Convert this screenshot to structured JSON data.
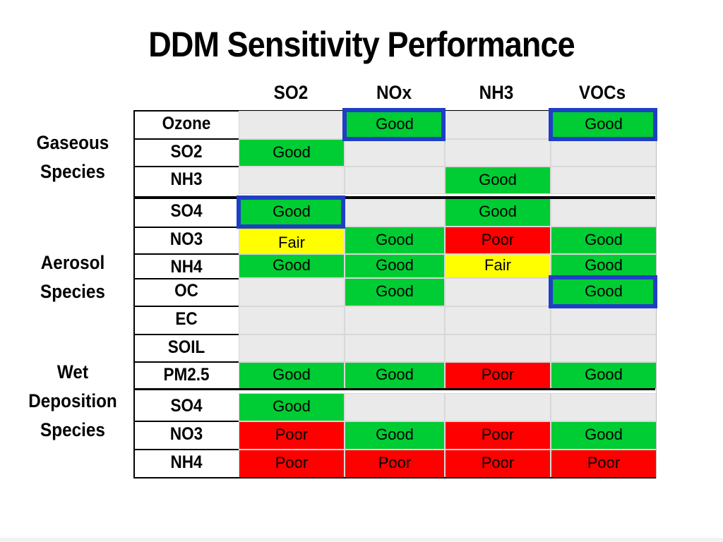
{
  "title": "DDM Sensitivity Performance",
  "columns": [
    "SO2",
    "NOx",
    "NH3",
    "VOCs"
  ],
  "groups": [
    {
      "lines": [
        "Gaseous",
        "Species"
      ]
    },
    {
      "lines": [
        "Aerosol",
        "Species"
      ]
    },
    {
      "lines": [
        "Wet",
        "Deposition",
        "Species"
      ]
    }
  ],
  "rows": [
    {
      "label": "Ozone",
      "cells": [
        "",
        "Good",
        "",
        "Good"
      ]
    },
    {
      "label": "SO2",
      "cells": [
        "Good",
        "",
        "",
        ""
      ]
    },
    {
      "label": "NH3",
      "cells": [
        "",
        "",
        "Good",
        ""
      ]
    },
    {
      "label": "SO4",
      "cells": [
        "Good",
        "",
        "Good",
        ""
      ]
    },
    {
      "label": "NO3",
      "cells": [
        "Fair",
        "Good",
        "Poor",
        "Good"
      ]
    },
    {
      "label": "NH4",
      "cells": [
        "Good",
        "Good",
        "Fair",
        "Good"
      ]
    },
    {
      "label": "OC",
      "cells": [
        "",
        "Good",
        "",
        "Good"
      ]
    },
    {
      "label": "EC",
      "cells": [
        "",
        "",
        "",
        ""
      ]
    },
    {
      "label": "SOIL",
      "cells": [
        "",
        "",
        "",
        ""
      ]
    },
    {
      "label": "PM2.5",
      "cells": [
        "Good",
        "Good",
        "Poor",
        "Good"
      ]
    },
    {
      "label": "SO4",
      "cells": [
        "Good",
        "",
        "",
        ""
      ]
    },
    {
      "label": "NO3",
      "cells": [
        "Poor",
        "Good",
        "Poor",
        "Good"
      ]
    },
    {
      "label": "NH4",
      "cells": [
        "Poor",
        "Poor",
        "Poor",
        "Poor"
      ]
    }
  ],
  "highlighted_cells": [
    {
      "row": 0,
      "col": 1
    },
    {
      "row": 0,
      "col": 3
    },
    {
      "row": 3,
      "col": 0
    },
    {
      "row": 6,
      "col": 3
    }
  ],
  "colors": {
    "Good": "#00cc33",
    "Fair": "#ffff00",
    "Poor": "#ff0000",
    "empty": "#eaeaea",
    "highlight_border": "#1f3ec6"
  }
}
